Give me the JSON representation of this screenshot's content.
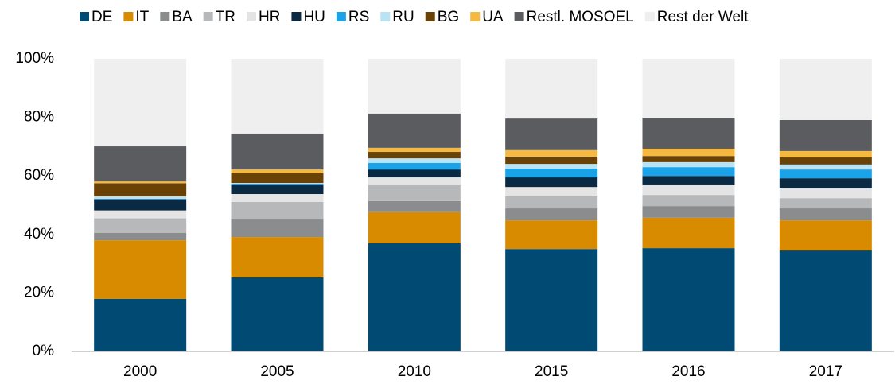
{
  "chart_data": {
    "type": "stacked_bar",
    "categories": [
      "2000",
      "2005",
      "2010",
      "2015",
      "2016",
      "2017"
    ],
    "series": [
      {
        "name": "DE",
        "color": "#004a73",
        "values": [
          18,
          25.3,
          37,
          35,
          35.3,
          34.5
        ]
      },
      {
        "name": "IT",
        "color": "#d98b00",
        "values": [
          20,
          13.8,
          10.6,
          9.8,
          10.4,
          10.3
        ]
      },
      {
        "name": "BA",
        "color": "#8a8c8e",
        "values": [
          2.5,
          6,
          3.8,
          4.1,
          4,
          4.1
        ]
      },
      {
        "name": "TR",
        "color": "#b7b8ba",
        "values": [
          5,
          6,
          5.4,
          4.1,
          3.8,
          3.5
        ]
      },
      {
        "name": "HR",
        "color": "#e4e4e4",
        "values": [
          2.7,
          2.7,
          2.7,
          3.2,
          3.3,
          3.3
        ]
      },
      {
        "name": "HU",
        "color": "#0a2a44",
        "values": [
          3.8,
          3,
          2.7,
          3.3,
          3.2,
          3.5
        ]
      },
      {
        "name": "RS",
        "color": "#1aa3e8",
        "values": [
          0.2,
          0.3,
          2.2,
          3,
          3,
          3
        ]
      },
      {
        "name": "RU",
        "color": "#b8e3f5",
        "values": [
          0.8,
          0.5,
          1.6,
          1.6,
          1.7,
          1.7
        ]
      },
      {
        "name": "BG",
        "color": "#6b4205",
        "values": [
          4.5,
          3.3,
          2.2,
          2.5,
          2.1,
          2.4
        ]
      },
      {
        "name": "UA",
        "color": "#f5b942",
        "values": [
          0.6,
          1.3,
          1.4,
          2.2,
          2.5,
          2.2
        ]
      },
      {
        "name": "Restl. MOSOEL",
        "color": "#5a5c60",
        "values": [
          12,
          12.3,
          11.7,
          10.8,
          10.6,
          10.6
        ]
      },
      {
        "name": "Rest der Welt",
        "color": "#efefef",
        "values": [
          29.9,
          25.5,
          18.7,
          20.4,
          20.1,
          20.9
        ]
      }
    ],
    "ylim": [
      0,
      100
    ],
    "yticks": [
      {
        "value": 0,
        "label": "0%"
      },
      {
        "value": 20,
        "label": "20%"
      },
      {
        "value": 40,
        "label": "40%"
      },
      {
        "value": 60,
        "label": "60%"
      },
      {
        "value": 80,
        "label": "80%"
      },
      {
        "value": 100,
        "label": "100%"
      }
    ],
    "legend": "top"
  }
}
